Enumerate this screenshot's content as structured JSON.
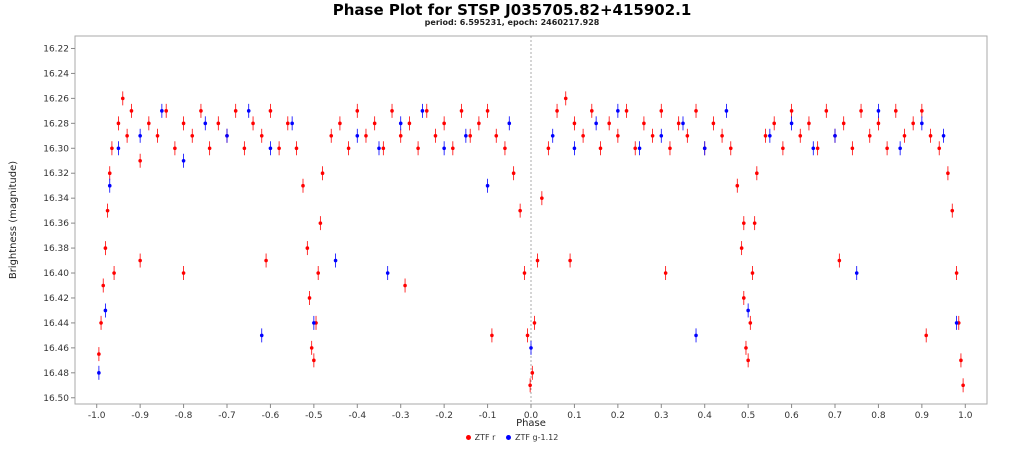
{
  "chart_data": {
    "type": "scatter",
    "title": "Phase Plot for STSP J035705.82+415902.1",
    "subtitle": "period: 6.595231, epoch: 2460217.928",
    "xlabel": "Phase",
    "ylabel": "Brightness (magnitude)",
    "xlim": [
      -1.05,
      1.05
    ],
    "ylim": [
      16.21,
      16.505
    ],
    "y_inverted": true,
    "x_ticks": [
      -1.0,
      -0.9,
      -0.8,
      -0.7,
      -0.6,
      -0.5,
      -0.4,
      -0.3,
      -0.2,
      -0.1,
      0.0,
      0.1,
      0.2,
      0.3,
      0.4,
      0.5,
      0.6,
      0.7,
      0.8,
      0.9,
      1.0
    ],
    "x_tick_labels": [
      "-1.0",
      "-0.9",
      "-0.8",
      "-0.7",
      "-0.6",
      "-0.5",
      "-0.4",
      "-0.3",
      "-0.2",
      "-0.1",
      "0.0",
      "0.1",
      "0.2",
      "0.3",
      "0.4",
      "0.5",
      "0.6",
      "0.7",
      "0.8",
      "0.9",
      "1.0"
    ],
    "y_ticks": [
      16.22,
      16.24,
      16.26,
      16.28,
      16.3,
      16.32,
      16.34,
      16.36,
      16.38,
      16.4,
      16.42,
      16.44,
      16.46,
      16.48,
      16.5
    ],
    "y_tick_labels": [
      "16.22",
      "16.24",
      "16.26",
      "16.28",
      "16.30",
      "16.32",
      "16.34",
      "16.36",
      "16.38",
      "16.40",
      "16.42",
      "16.44",
      "16.46",
      "16.48",
      "16.50"
    ],
    "grid": false,
    "zero_line": true,
    "legend_position": "bottom-center",
    "series": [
      {
        "name": "ZTF r",
        "color": "#ff0000",
        "points": [
          [
            -0.995,
            16.465
          ],
          [
            -0.99,
            16.44
          ],
          [
            -0.985,
            16.41
          ],
          [
            -0.98,
            16.38
          ],
          [
            -0.975,
            16.35
          ],
          [
            -0.97,
            16.32
          ],
          [
            -0.965,
            16.3
          ],
          [
            -0.95,
            16.28
          ],
          [
            -0.94,
            16.26
          ],
          [
            -0.93,
            16.29
          ],
          [
            -0.92,
            16.27
          ],
          [
            -0.9,
            16.31
          ],
          [
            -0.88,
            16.28
          ],
          [
            -0.86,
            16.29
          ],
          [
            -0.84,
            16.27
          ],
          [
            -0.82,
            16.3
          ],
          [
            -0.8,
            16.28
          ],
          [
            -0.78,
            16.29
          ],
          [
            -0.76,
            16.27
          ],
          [
            -0.74,
            16.3
          ],
          [
            -0.72,
            16.28
          ],
          [
            -0.7,
            16.29
          ],
          [
            -0.68,
            16.27
          ],
          [
            -0.66,
            16.3
          ],
          [
            -0.64,
            16.28
          ],
          [
            -0.62,
            16.29
          ],
          [
            -0.6,
            16.27
          ],
          [
            -0.58,
            16.3
          ],
          [
            -0.56,
            16.28
          ],
          [
            -0.54,
            16.3
          ],
          [
            -0.525,
            16.33
          ],
          [
            -0.515,
            16.38
          ],
          [
            -0.51,
            16.42
          ],
          [
            -0.505,
            16.46
          ],
          [
            -0.5,
            16.47
          ],
          [
            -0.495,
            16.44
          ],
          [
            -0.49,
            16.4
          ],
          [
            -0.485,
            16.36
          ],
          [
            -0.48,
            16.32
          ],
          [
            -0.46,
            16.29
          ],
          [
            -0.44,
            16.28
          ],
          [
            -0.42,
            16.3
          ],
          [
            -0.4,
            16.27
          ],
          [
            -0.38,
            16.29
          ],
          [
            -0.36,
            16.28
          ],
          [
            -0.34,
            16.3
          ],
          [
            -0.32,
            16.27
          ],
          [
            -0.3,
            16.29
          ],
          [
            -0.28,
            16.28
          ],
          [
            -0.26,
            16.3
          ],
          [
            -0.24,
            16.27
          ],
          [
            -0.22,
            16.29
          ],
          [
            -0.2,
            16.28
          ],
          [
            -0.18,
            16.3
          ],
          [
            -0.16,
            16.27
          ],
          [
            -0.14,
            16.29
          ],
          [
            -0.12,
            16.28
          ],
          [
            -0.1,
            16.27
          ],
          [
            -0.08,
            16.29
          ],
          [
            -0.06,
            16.3
          ],
          [
            -0.04,
            16.32
          ],
          [
            -0.025,
            16.35
          ],
          [
            -0.015,
            16.4
          ],
          [
            -0.008,
            16.45
          ],
          [
            -0.002,
            16.49
          ],
          [
            0.003,
            16.48
          ],
          [
            0.008,
            16.44
          ],
          [
            0.015,
            16.39
          ],
          [
            0.025,
            16.34
          ],
          [
            0.04,
            16.3
          ],
          [
            0.06,
            16.27
          ],
          [
            0.08,
            16.26
          ],
          [
            0.1,
            16.28
          ],
          [
            0.12,
            16.29
          ],
          [
            0.14,
            16.27
          ],
          [
            0.16,
            16.3
          ],
          [
            0.18,
            16.28
          ],
          [
            0.2,
            16.29
          ],
          [
            0.22,
            16.27
          ],
          [
            0.24,
            16.3
          ],
          [
            0.26,
            16.28
          ],
          [
            0.28,
            16.29
          ],
          [
            0.3,
            16.27
          ],
          [
            0.32,
            16.3
          ],
          [
            0.34,
            16.28
          ],
          [
            0.36,
            16.29
          ],
          [
            0.38,
            16.27
          ],
          [
            0.4,
            16.3
          ],
          [
            0.42,
            16.28
          ],
          [
            0.44,
            16.29
          ],
          [
            0.46,
            16.3
          ],
          [
            0.475,
            16.33
          ],
          [
            0.485,
            16.38
          ],
          [
            0.49,
            16.42
          ],
          [
            0.495,
            16.46
          ],
          [
            0.5,
            16.47
          ],
          [
            0.505,
            16.44
          ],
          [
            0.51,
            16.4
          ],
          [
            0.515,
            16.36
          ],
          [
            0.52,
            16.32
          ],
          [
            0.54,
            16.29
          ],
          [
            0.56,
            16.28
          ],
          [
            0.58,
            16.3
          ],
          [
            0.6,
            16.27
          ],
          [
            0.62,
            16.29
          ],
          [
            0.64,
            16.28
          ],
          [
            0.66,
            16.3
          ],
          [
            0.68,
            16.27
          ],
          [
            0.7,
            16.29
          ],
          [
            0.72,
            16.28
          ],
          [
            0.74,
            16.3
          ],
          [
            0.76,
            16.27
          ],
          [
            0.78,
            16.29
          ],
          [
            0.8,
            16.28
          ],
          [
            0.82,
            16.3
          ],
          [
            0.84,
            16.27
          ],
          [
            0.86,
            16.29
          ],
          [
            0.88,
            16.28
          ],
          [
            0.9,
            16.27
          ],
          [
            0.92,
            16.29
          ],
          [
            0.94,
            16.3
          ],
          [
            0.96,
            16.32
          ],
          [
            0.97,
            16.35
          ],
          [
            0.98,
            16.4
          ],
          [
            0.985,
            16.44
          ],
          [
            0.99,
            16.47
          ],
          [
            0.995,
            16.49
          ],
          [
            -0.9,
            16.39
          ],
          [
            -0.8,
            16.4
          ],
          [
            -0.61,
            16.39
          ],
          [
            -0.29,
            16.41
          ],
          [
            -0.09,
            16.45
          ],
          [
            0.09,
            16.39
          ],
          [
            0.31,
            16.4
          ],
          [
            0.71,
            16.39
          ],
          [
            0.91,
            16.45
          ],
          [
            -0.96,
            16.4
          ],
          [
            0.49,
            16.36
          ]
        ]
      },
      {
        "name": "ZTF g-1.12",
        "color": "#0000ff",
        "points": [
          [
            -0.995,
            16.48
          ],
          [
            -0.98,
            16.43
          ],
          [
            -0.97,
            16.33
          ],
          [
            -0.95,
            16.3
          ],
          [
            -0.9,
            16.29
          ],
          [
            -0.85,
            16.27
          ],
          [
            -0.8,
            16.31
          ],
          [
            -0.75,
            16.28
          ],
          [
            -0.7,
            16.29
          ],
          [
            -0.65,
            16.27
          ],
          [
            -0.62,
            16.45
          ],
          [
            -0.6,
            16.3
          ],
          [
            -0.55,
            16.28
          ],
          [
            -0.5,
            16.44
          ],
          [
            -0.45,
            16.39
          ],
          [
            -0.4,
            16.29
          ],
          [
            -0.35,
            16.3
          ],
          [
            -0.33,
            16.4
          ],
          [
            -0.3,
            16.28
          ],
          [
            -0.25,
            16.27
          ],
          [
            -0.2,
            16.3
          ],
          [
            -0.15,
            16.29
          ],
          [
            -0.1,
            16.33
          ],
          [
            -0.05,
            16.28
          ],
          [
            0.0,
            16.46
          ],
          [
            0.05,
            16.29
          ],
          [
            0.1,
            16.3
          ],
          [
            0.15,
            16.28
          ],
          [
            0.2,
            16.27
          ],
          [
            0.25,
            16.3
          ],
          [
            0.3,
            16.29
          ],
          [
            0.35,
            16.28
          ],
          [
            0.38,
            16.45
          ],
          [
            0.4,
            16.3
          ],
          [
            0.45,
            16.27
          ],
          [
            0.5,
            16.43
          ],
          [
            0.55,
            16.29
          ],
          [
            0.6,
            16.28
          ],
          [
            0.65,
            16.3
          ],
          [
            0.7,
            16.29
          ],
          [
            0.75,
            16.4
          ],
          [
            0.8,
            16.27
          ],
          [
            0.85,
            16.3
          ],
          [
            0.9,
            16.28
          ],
          [
            0.95,
            16.29
          ],
          [
            0.98,
            16.44
          ]
        ]
      }
    ]
  }
}
